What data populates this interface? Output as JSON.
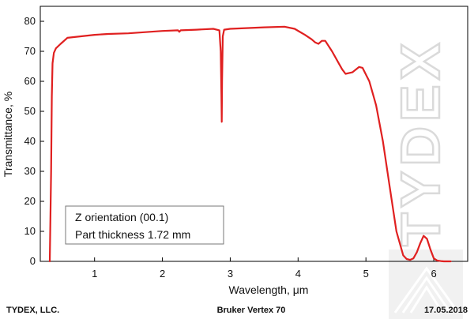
{
  "chart_data": {
    "type": "line",
    "title": "",
    "xlabel": "Wavelength, μm",
    "ylabel": "Transmittance, %",
    "xlim": [
      0.2,
      6.5
    ],
    "ylim": [
      0,
      85
    ],
    "x_ticks": [
      1,
      2,
      3,
      4,
      5,
      6
    ],
    "y_ticks": [
      0,
      10,
      20,
      30,
      40,
      50,
      60,
      70,
      80
    ],
    "grid": false,
    "series": [
      {
        "name": "Transmittance",
        "color": "#e02020",
        "x": [
          0.34,
          0.36,
          0.37,
          0.38,
          0.4,
          0.43,
          0.5,
          0.6,
          0.8,
          1.0,
          1.2,
          1.5,
          2.0,
          2.23,
          2.25,
          2.27,
          2.5,
          2.75,
          2.84,
          2.86,
          2.87,
          2.875,
          2.88,
          2.89,
          2.91,
          3.0,
          3.5,
          3.8,
          3.95,
          4.1,
          4.2,
          4.25,
          4.3,
          4.35,
          4.4,
          4.5,
          4.6,
          4.65,
          4.7,
          4.8,
          4.9,
          4.95,
          5.05,
          5.15,
          5.25,
          5.35,
          5.45,
          5.55,
          5.6,
          5.65,
          5.7,
          5.75,
          5.8,
          5.85,
          5.9,
          5.95,
          6.0,
          6.05,
          6.1,
          6.15,
          6.2,
          6.25
        ],
        "y": [
          0,
          30,
          55,
          66,
          69.5,
          71,
          72.5,
          74.5,
          75,
          75.5,
          75.8,
          76,
          76.8,
          77,
          76.5,
          77,
          77.2,
          77.5,
          77,
          70,
          55,
          46.5,
          60,
          75,
          77.2,
          77.5,
          78,
          78.2,
          77.5,
          75.5,
          74,
          73,
          72.5,
          73.5,
          73.5,
          70,
          66,
          64,
          62.5,
          63,
          64.8,
          64.5,
          60,
          52,
          40,
          25,
          10,
          2,
          0.8,
          0.5,
          1,
          3,
          6,
          8.5,
          7.5,
          4,
          1,
          0.3,
          0.1,
          0,
          0,
          0
        ]
      }
    ],
    "legend": {
      "lines": [
        "Z orientation (00.1)",
        "Part thickness 1.72 mm"
      ],
      "position": "bottom-left"
    }
  },
  "footer": {
    "company": "TYDEX, LLC.",
    "instrument": "Bruker Vertex 70",
    "date": "17.05.2018"
  },
  "watermark": "TYDEX"
}
